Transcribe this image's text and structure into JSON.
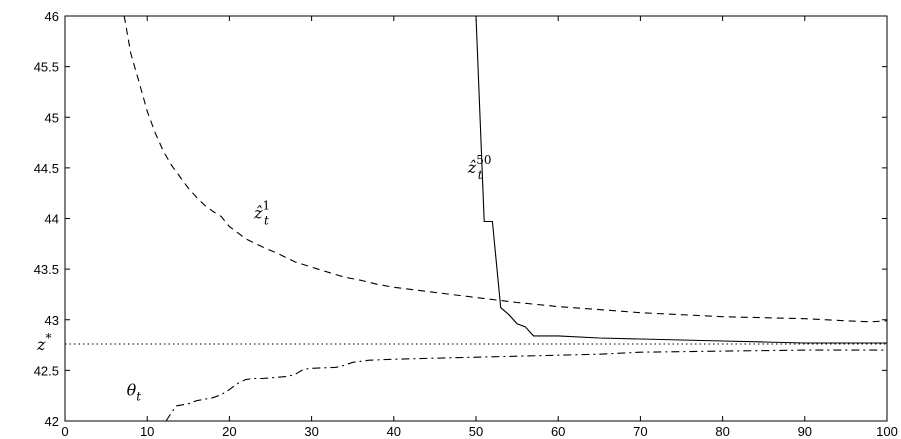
{
  "chart_data": {
    "type": "line",
    "title": "",
    "xlabel": "",
    "ylabel": "",
    "xlim": [
      0,
      100
    ],
    "ylim": [
      42,
      46
    ],
    "x_ticks": [
      "0",
      "10",
      "20",
      "30",
      "40",
      "50",
      "60",
      "70",
      "80",
      "90",
      "100"
    ],
    "y_ticks": [
      "42",
      "42.5",
      "43",
      "43.5",
      "44",
      "44.5",
      "45",
      "45.5",
      "46"
    ],
    "grid": false,
    "reference_lines": [
      {
        "y": 42.76,
        "style": "dotted",
        "label_base": "z",
        "label_sup": "*"
      }
    ],
    "series": [
      {
        "style": "dashed",
        "label_base": "ẑ",
        "label_sub": "t",
        "label_sup": "1",
        "label_at": [
          23,
          44.0
        ],
        "x": [
          7.2,
          8,
          9,
          10,
          11,
          12,
          13,
          14,
          15,
          16,
          17,
          18,
          19,
          20,
          22,
          24,
          26,
          28,
          30,
          32,
          34,
          36,
          38,
          40,
          45,
          50,
          55,
          60,
          65,
          70,
          75,
          80,
          85,
          90,
          95,
          98,
          100
        ],
        "values": [
          46.0,
          45.63,
          45.35,
          45.06,
          44.84,
          44.66,
          44.52,
          44.41,
          44.3,
          44.21,
          44.13,
          44.07,
          44.02,
          43.92,
          43.8,
          43.72,
          43.65,
          43.57,
          43.52,
          43.47,
          43.42,
          43.39,
          43.35,
          43.32,
          43.27,
          43.22,
          43.17,
          43.13,
          43.1,
          43.07,
          43.05,
          43.03,
          43.02,
          43.01,
          42.99,
          42.98,
          42.99
        ]
      },
      {
        "style": "solid",
        "label_base": "ẑ",
        "label_sub": "t",
        "label_sup": "50",
        "label_at": [
          49,
          44.45
        ],
        "x": [
          50.0,
          51.0,
          51.0,
          52.0,
          53.0,
          54.0,
          55.0,
          56.0,
          57.0,
          60.0,
          65.0,
          70.0,
          75.0,
          80.0,
          85.0,
          90.0,
          100.0
        ],
        "values": [
          46.0,
          43.97,
          43.97,
          43.97,
          43.12,
          43.05,
          42.96,
          42.93,
          42.84,
          42.84,
          42.82,
          42.81,
          42.8,
          42.79,
          42.78,
          42.77,
          42.77
        ]
      },
      {
        "style": "dashdot",
        "label_base": "θ",
        "label_sub": "t",
        "label_at": [
          7.5,
          42.25
        ],
        "x": [
          12.3,
          13,
          13.6,
          15,
          16,
          18,
          19,
          20,
          21,
          22,
          23,
          24,
          27,
          28,
          29,
          30,
          33,
          34,
          35,
          36,
          37,
          40,
          45,
          50,
          55,
          60,
          65,
          70,
          80,
          90,
          100
        ],
        "values": [
          42.0,
          42.09,
          42.15,
          42.17,
          42.2,
          42.23,
          42.26,
          42.31,
          42.37,
          42.41,
          42.42,
          42.42,
          42.44,
          42.46,
          42.51,
          42.52,
          42.53,
          42.55,
          42.58,
          42.59,
          42.6,
          42.61,
          42.62,
          42.63,
          42.64,
          42.65,
          42.66,
          42.68,
          42.69,
          42.7,
          42.7
        ]
      }
    ]
  }
}
